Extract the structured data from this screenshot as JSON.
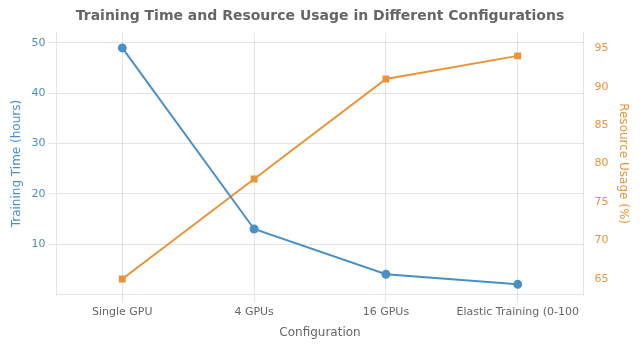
{
  "chart_data": {
    "type": "line",
    "title": "Training Time and Resource Usage in Different Configurations",
    "categories": [
      "Single GPU",
      "4 GPUs",
      "16 GPUs",
      "Elastic Training (0-100"
    ],
    "xlabel": "Configuration",
    "ylabel": "Training Time (hours)",
    "y2label": "Resource Usage (%)",
    "series": [
      {
        "color": "#4a90c4",
        "marker": "circle",
        "values": [
          49,
          13,
          4,
          2
        ]
      },
      {
        "color": "#e8943a",
        "marker": "square",
        "axis": "y2",
        "values": [
          65,
          78,
          91,
          94
        ]
      }
    ],
    "ylim": [
      0,
      52
    ],
    "yticks": [
      10,
      20,
      30,
      40,
      50
    ],
    "y2lim": [
      63,
      97
    ],
    "y2ticks": [
      65,
      70,
      75,
      80,
      85,
      90,
      95
    ],
    "grid": true
  }
}
